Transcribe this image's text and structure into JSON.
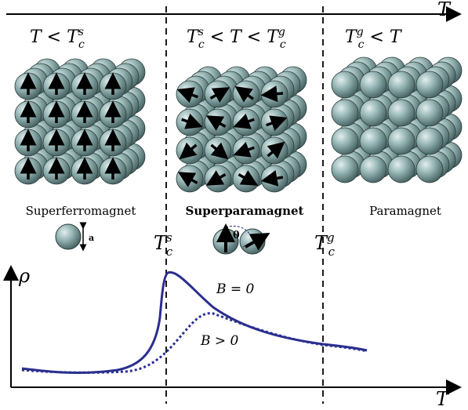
{
  "axis_top": {
    "label": "T"
  },
  "axis_bottom": {
    "x_label": "T",
    "y_label": "ρ"
  },
  "regions": [
    {
      "condition_main": "T < T",
      "sup": "s",
      "sub": "c",
      "phase": "Superferromagnet",
      "phase_bold": false
    },
    {
      "condition_main": "T",
      "sup": "s",
      "sub": "c",
      "phase": "Superparamagnet",
      "phase_bold": true
    },
    {
      "condition_main": "T",
      "sup": "g",
      "sub": "c",
      "phase": "Paramagnet",
      "phase_bold": false
    }
  ],
  "cond": {
    "r1": {
      "a": "T < T",
      "s": "s",
      "c": "c"
    },
    "r2": {
      "a": "T",
      "s1": "s",
      "c1": "c",
      "mid": " < T < T",
      "s2": "g",
      "c2": "c"
    },
    "r3": {
      "a": "T",
      "s": "g",
      "c": "c",
      "b": " < T"
    }
  },
  "boundaries": [
    {
      "label": "T",
      "sup": "s",
      "sub": "c"
    },
    {
      "label": "T",
      "sup": "g",
      "sub": "c"
    }
  ],
  "legend": {
    "size_symbol": "a",
    "angle_symbol": "θ"
  },
  "curves": [
    {
      "label": "B = 0",
      "style": "solid"
    },
    {
      "label": "B > 0",
      "style": "dotted"
    }
  ],
  "colors": {
    "sphere": "#8fb0b0",
    "sphere_light": "#d6e6e6",
    "sphere_dark": "#4c6a6a",
    "curve": "#2b2f8f",
    "axis": "#000000"
  }
}
